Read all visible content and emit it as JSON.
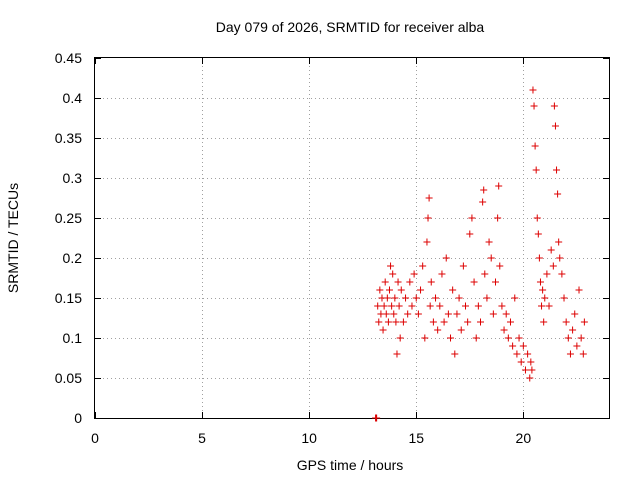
{
  "chart_data": {
    "type": "scatter",
    "title": "Day 079 of 2026, SRMTID for receiver alba",
    "xlabel": "GPS time / hours",
    "ylabel": "SRMTID / TECUs",
    "xlim": [
      0,
      24
    ],
    "ylim": [
      0,
      0.45
    ],
    "xticks": [
      0,
      5,
      10,
      15,
      20
    ],
    "yticks": [
      0,
      0.05,
      0.1,
      0.15,
      0.2,
      0.25,
      0.3,
      0.35,
      0.4,
      0.45
    ],
    "xtick_labels": [
      "0",
      "5",
      "10",
      "15",
      "20"
    ],
    "ytick_labels": [
      "0",
      "0.05",
      "0.1",
      "0.15",
      "0.2",
      "0.25",
      "0.3",
      "0.35",
      "0.4",
      "0.45"
    ],
    "grid": true,
    "marker": "+",
    "color": "#dd0000",
    "series": [
      {
        "name": "SRMTID",
        "points": [
          [
            13.1,
            0.0
          ],
          [
            13.12,
            0.0
          ],
          [
            13.15,
            0.0
          ],
          [
            13.2,
            0.14
          ],
          [
            13.25,
            0.12
          ],
          [
            13.3,
            0.16
          ],
          [
            13.35,
            0.13
          ],
          [
            13.4,
            0.15
          ],
          [
            13.45,
            0.11
          ],
          [
            13.5,
            0.14
          ],
          [
            13.55,
            0.17
          ],
          [
            13.6,
            0.13
          ],
          [
            13.65,
            0.15
          ],
          [
            13.7,
            0.12
          ],
          [
            13.75,
            0.16
          ],
          [
            13.8,
            0.19
          ],
          [
            13.85,
            0.14
          ],
          [
            13.9,
            0.18
          ],
          [
            13.95,
            0.13
          ],
          [
            14.0,
            0.15
          ],
          [
            14.05,
            0.12
          ],
          [
            14.1,
            0.08
          ],
          [
            14.15,
            0.17
          ],
          [
            14.2,
            0.14
          ],
          [
            14.25,
            0.1
          ],
          [
            14.3,
            0.16
          ],
          [
            14.4,
            0.12
          ],
          [
            14.5,
            0.15
          ],
          [
            14.6,
            0.13
          ],
          [
            14.7,
            0.17
          ],
          [
            14.8,
            0.14
          ],
          [
            14.9,
            0.18
          ],
          [
            15.0,
            0.15
          ],
          [
            15.1,
            0.13
          ],
          [
            15.2,
            0.16
          ],
          [
            15.3,
            0.19
          ],
          [
            15.4,
            0.1
          ],
          [
            15.5,
            0.22
          ],
          [
            15.55,
            0.25
          ],
          [
            15.6,
            0.275
          ],
          [
            15.65,
            0.14
          ],
          [
            15.7,
            0.17
          ],
          [
            15.8,
            0.12
          ],
          [
            15.9,
            0.15
          ],
          [
            16.0,
            0.11
          ],
          [
            16.1,
            0.14
          ],
          [
            16.2,
            0.18
          ],
          [
            16.3,
            0.12
          ],
          [
            16.4,
            0.2
          ],
          [
            16.5,
            0.13
          ],
          [
            16.6,
            0.1
          ],
          [
            16.7,
            0.16
          ],
          [
            16.8,
            0.08
          ],
          [
            16.9,
            0.13
          ],
          [
            17.0,
            0.15
          ],
          [
            17.1,
            0.11
          ],
          [
            17.2,
            0.19
          ],
          [
            17.3,
            0.14
          ],
          [
            17.4,
            0.12
          ],
          [
            17.5,
            0.23
          ],
          [
            17.6,
            0.25
          ],
          [
            17.7,
            0.17
          ],
          [
            17.8,
            0.1
          ],
          [
            17.9,
            0.14
          ],
          [
            18.0,
            0.12
          ],
          [
            18.1,
            0.27
          ],
          [
            18.15,
            0.285
          ],
          [
            18.2,
            0.18
          ],
          [
            18.3,
            0.15
          ],
          [
            18.4,
            0.22
          ],
          [
            18.5,
            0.2
          ],
          [
            18.6,
            0.13
          ],
          [
            18.7,
            0.17
          ],
          [
            18.8,
            0.25
          ],
          [
            18.85,
            0.29
          ],
          [
            18.9,
            0.19
          ],
          [
            19.0,
            0.14
          ],
          [
            19.1,
            0.11
          ],
          [
            19.2,
            0.13
          ],
          [
            19.3,
            0.1
          ],
          [
            19.4,
            0.12
          ],
          [
            19.5,
            0.09
          ],
          [
            19.6,
            0.15
          ],
          [
            19.7,
            0.08
          ],
          [
            19.8,
            0.1
          ],
          [
            19.9,
            0.07
          ],
          [
            20.0,
            0.09
          ],
          [
            20.1,
            0.06
          ],
          [
            20.2,
            0.08
          ],
          [
            20.3,
            0.05
          ],
          [
            20.35,
            0.07
          ],
          [
            20.4,
            0.06
          ],
          [
            20.45,
            0.41
          ],
          [
            20.5,
            0.39
          ],
          [
            20.55,
            0.34
          ],
          [
            20.6,
            0.31
          ],
          [
            20.65,
            0.25
          ],
          [
            20.7,
            0.23
          ],
          [
            20.75,
            0.2
          ],
          [
            20.8,
            0.17
          ],
          [
            20.85,
            0.14
          ],
          [
            20.9,
            0.16
          ],
          [
            20.95,
            0.12
          ],
          [
            21.0,
            0.15
          ],
          [
            21.1,
            0.18
          ],
          [
            21.2,
            0.14
          ],
          [
            21.3,
            0.21
          ],
          [
            21.4,
            0.19
          ],
          [
            21.45,
            0.39
          ],
          [
            21.5,
            0.365
          ],
          [
            21.55,
            0.31
          ],
          [
            21.6,
            0.28
          ],
          [
            21.65,
            0.22
          ],
          [
            21.7,
            0.2
          ],
          [
            21.8,
            0.18
          ],
          [
            21.9,
            0.15
          ],
          [
            22.0,
            0.12
          ],
          [
            22.1,
            0.1
          ],
          [
            22.2,
            0.08
          ],
          [
            22.3,
            0.11
          ],
          [
            22.4,
            0.13
          ],
          [
            22.5,
            0.09
          ],
          [
            22.6,
            0.16
          ],
          [
            22.7,
            0.1
          ],
          [
            22.8,
            0.08
          ],
          [
            22.85,
            0.12
          ]
        ]
      }
    ]
  }
}
